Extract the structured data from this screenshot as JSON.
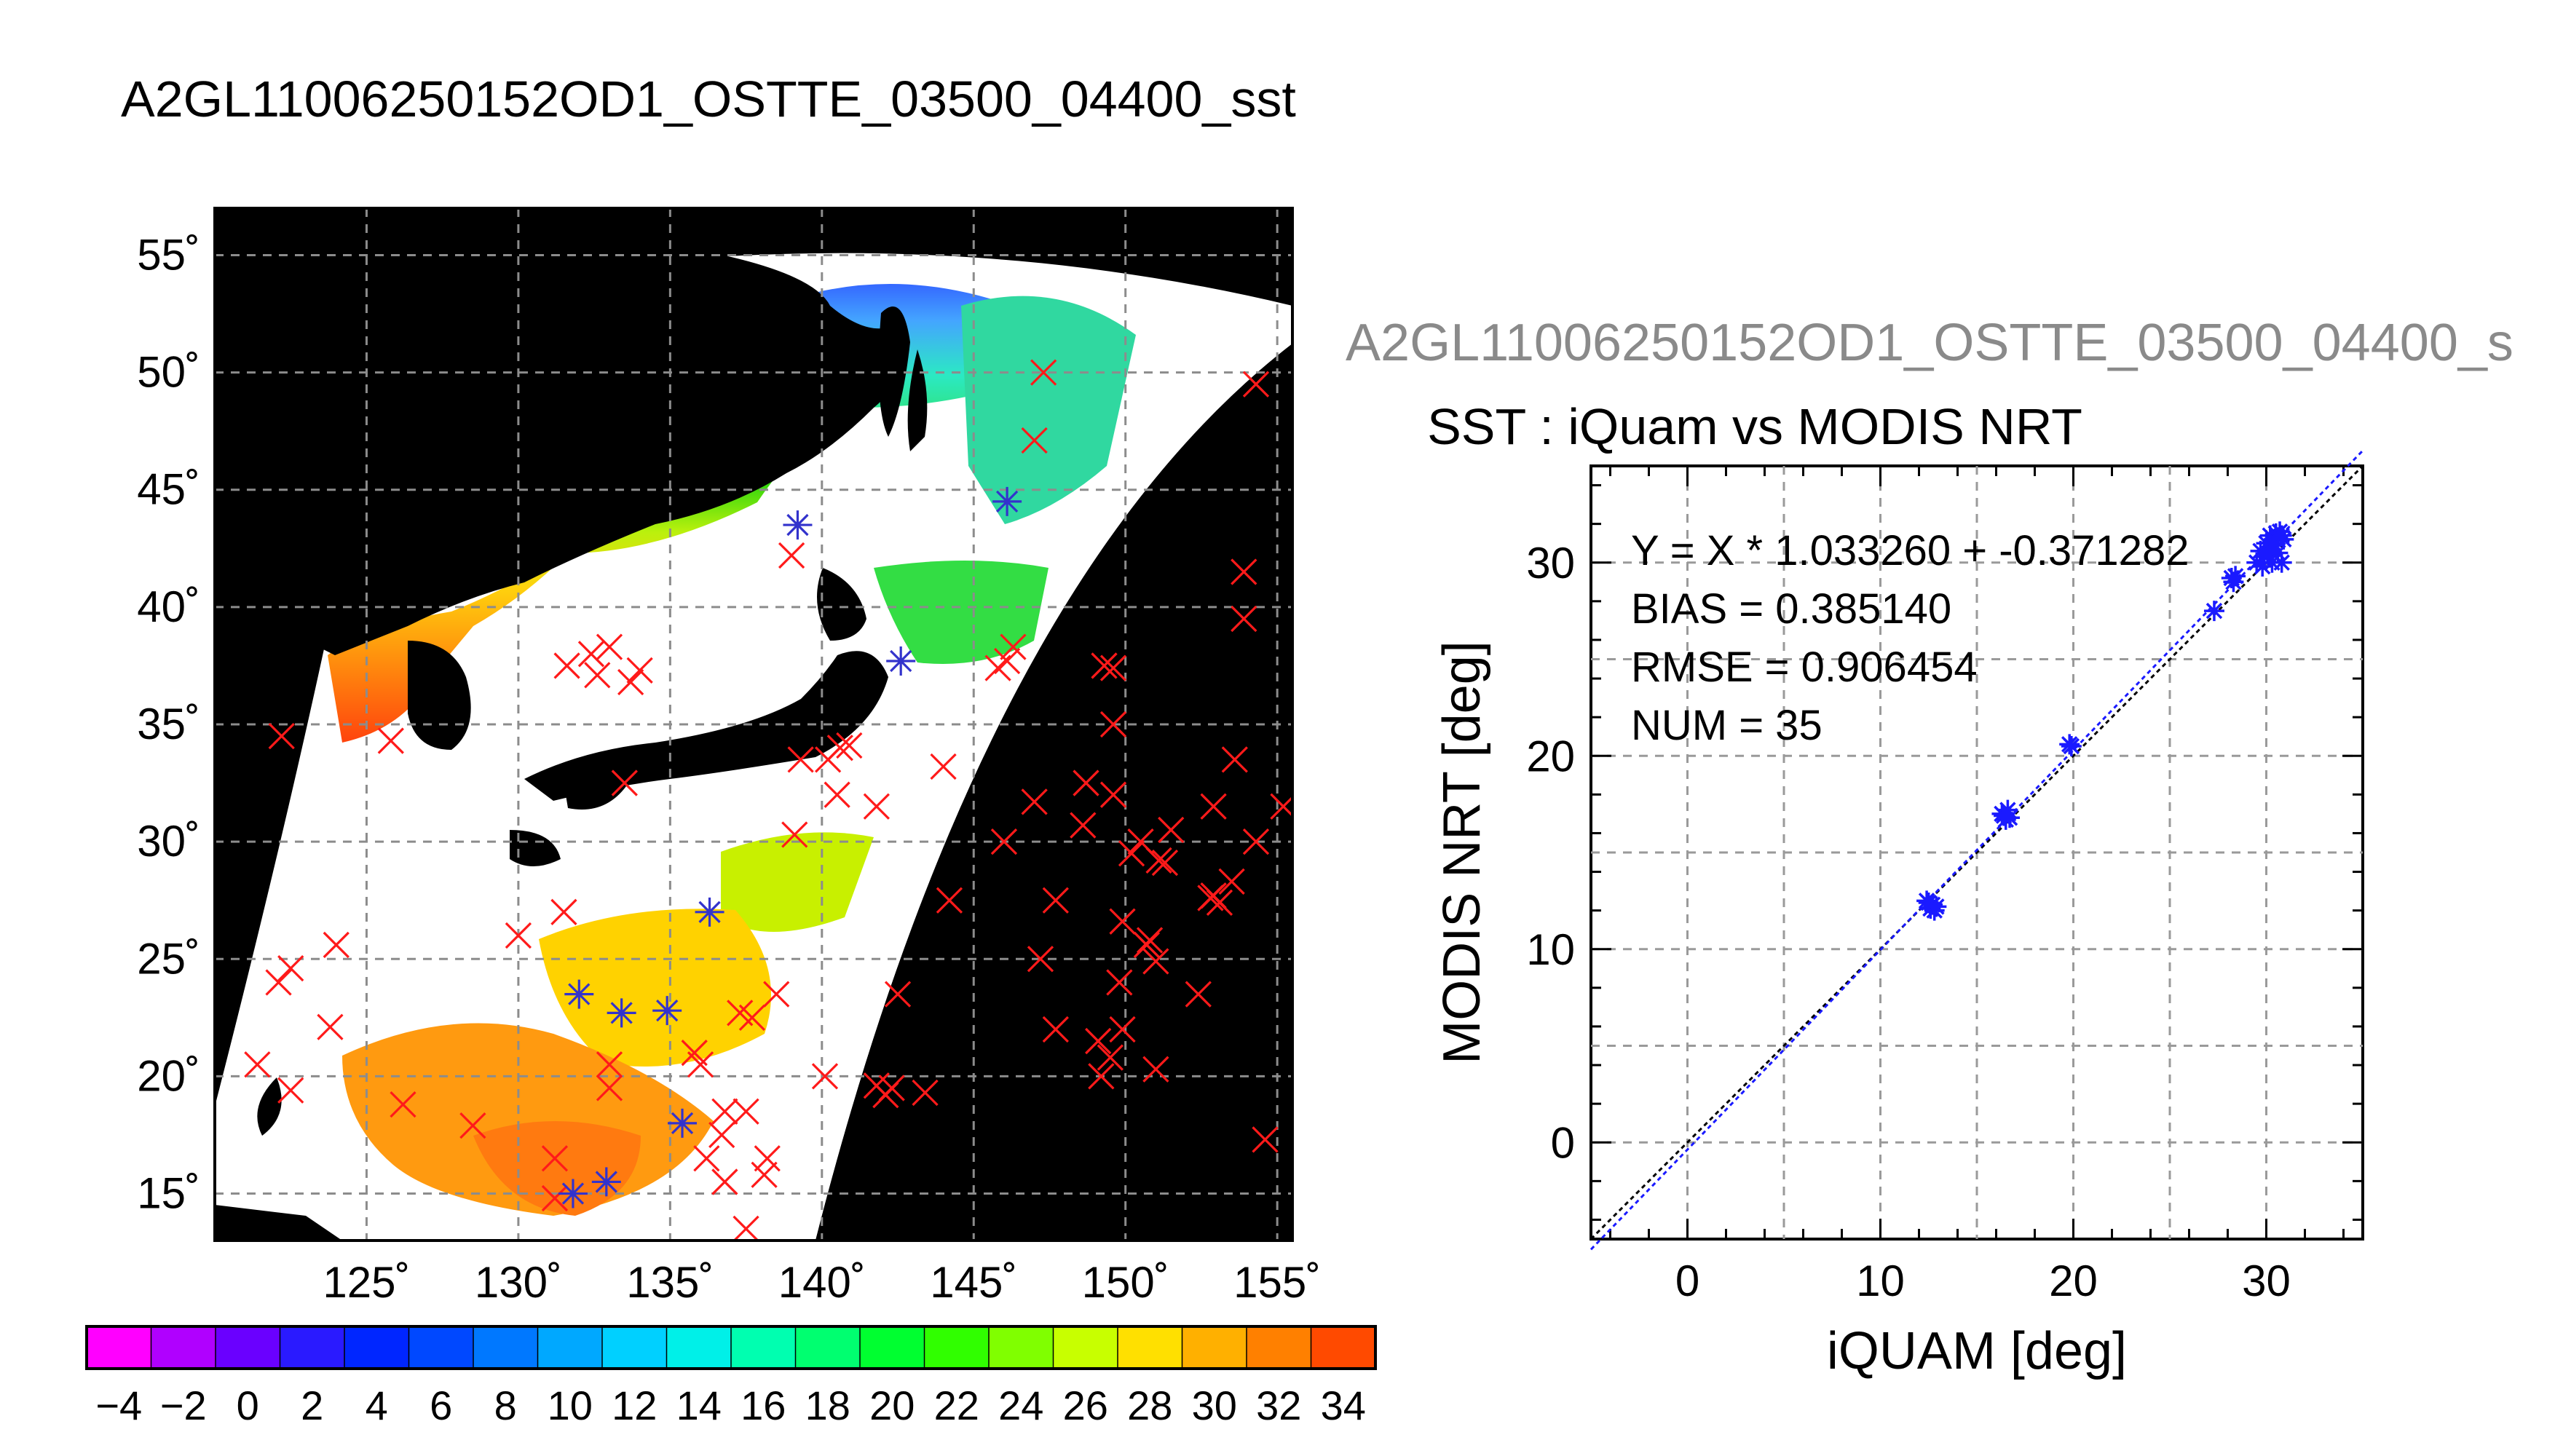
{
  "figure": {
    "title": "A2GL11006250152OD1_OSTTE_03500_04400_sst",
    "side_title": "A2GL11006250152OD1_OSTTE_03500_04400_s"
  },
  "chart_data": [
    {
      "type": "map",
      "x_ticks": [
        "125˚",
        "130˚",
        "135˚",
        "140˚",
        "145˚",
        "150˚",
        "155˚"
      ],
      "y_ticks": [
        "55˚",
        "50˚",
        "45˚",
        "40˚",
        "35˚",
        "30˚",
        "25˚",
        "20˚",
        "15˚"
      ],
      "lon_range": [
        120,
        155.5
      ],
      "lat_range": [
        13,
        57
      ],
      "grid": true,
      "rejected_points": [
        [
          122.2,
          34.5
        ],
        [
          121.4,
          20.5
        ],
        [
          122.1,
          24.0
        ],
        [
          122.5,
          24.6
        ],
        [
          122.5,
          19.4
        ],
        [
          123.8,
          22.1
        ],
        [
          124.0,
          25.6
        ],
        [
          125.8,
          34.3
        ],
        [
          126.2,
          18.8
        ],
        [
          128.5,
          17.9
        ],
        [
          130.0,
          26.0
        ],
        [
          131.5,
          27.0
        ],
        [
          131.2,
          16.5
        ],
        [
          131.2,
          14.8
        ],
        [
          133.0,
          19.5
        ],
        [
          133.0,
          20.5
        ],
        [
          131.6,
          37.5
        ],
        [
          132.4,
          38.0
        ],
        [
          132.6,
          37.1
        ],
        [
          133.0,
          38.3
        ],
        [
          133.7,
          36.8
        ],
        [
          134.0,
          37.3
        ],
        [
          133.5,
          32.5
        ],
        [
          135.8,
          21.0
        ],
        [
          136.0,
          20.5
        ],
        [
          136.8,
          18.5
        ],
        [
          136.7,
          17.5
        ],
        [
          136.2,
          16.5
        ],
        [
          136.8,
          15.5
        ],
        [
          137.5,
          18.5
        ],
        [
          138.1,
          15.8
        ],
        [
          138.2,
          16.5
        ],
        [
          137.5,
          13.5
        ],
        [
          137.3,
          22.7
        ],
        [
          137.7,
          22.5
        ],
        [
          138.5,
          23.5
        ],
        [
          139.0,
          42.2
        ],
        [
          139.3,
          33.5
        ],
        [
          140.2,
          33.5
        ],
        [
          140.5,
          32.0
        ],
        [
          140.6,
          34.0
        ],
        [
          140.9,
          34.1
        ],
        [
          141.8,
          31.5
        ],
        [
          142.5,
          23.5
        ],
        [
          141.8,
          19.6
        ],
        [
          142.3,
          19.5
        ],
        [
          142.1,
          19.2
        ],
        [
          143.4,
          19.3
        ],
        [
          144.0,
          33.2
        ],
        [
          144.2,
          27.5
        ],
        [
          145.8,
          37.4
        ],
        [
          146.1,
          37.7
        ],
        [
          146.3,
          38.3
        ],
        [
          146.0,
          30.0
        ],
        [
          147.0,
          31.7
        ],
        [
          147.7,
          27.5
        ],
        [
          147.2,
          25.0
        ],
        [
          147.7,
          22.0
        ],
        [
          148.6,
          30.7
        ],
        [
          148.7,
          32.5
        ],
        [
          149.3,
          37.5
        ],
        [
          149.6,
          37.4
        ],
        [
          149.6,
          35.0
        ],
        [
          149.6,
          32.0
        ],
        [
          149.1,
          21.5
        ],
        [
          149.5,
          20.8
        ],
        [
          149.2,
          20.0
        ],
        [
          149.9,
          22.0
        ],
        [
          149.8,
          24.0
        ],
        [
          149.9,
          26.6
        ],
        [
          150.2,
          29.5
        ],
        [
          150.5,
          30.0
        ],
        [
          150.7,
          25.6
        ],
        [
          150.8,
          25.8
        ],
        [
          151.0,
          24.9
        ],
        [
          151.0,
          20.3
        ],
        [
          151.1,
          29.2
        ],
        [
          151.3,
          29.1
        ],
        [
          151.5,
          30.5
        ],
        [
          152.4,
          23.5
        ],
        [
          152.8,
          27.6
        ],
        [
          152.9,
          27.7
        ],
        [
          153.1,
          27.4
        ],
        [
          152.9,
          31.5
        ],
        [
          153.5,
          28.3
        ],
        [
          153.6,
          33.5
        ],
        [
          153.9,
          39.5
        ],
        [
          153.9,
          41.5
        ],
        [
          154.3,
          30.0
        ],
        [
          155.2,
          31.5
        ],
        [
          154.3,
          49.5
        ],
        [
          154.6,
          17.3
        ],
        [
          147.3,
          50.0
        ],
        [
          147.0,
          47.1
        ],
        [
          139.1,
          30.3
        ],
        [
          140.1,
          20.0
        ]
      ],
      "matched_points": [
        [
          139.2,
          43.5
        ],
        [
          146.1,
          44.5
        ],
        [
          142.6,
          37.7
        ],
        [
          136.3,
          27.0
        ],
        [
          132.0,
          23.5
        ],
        [
          133.4,
          22.7
        ],
        [
          134.9,
          22.8
        ],
        [
          135.4,
          18.0
        ],
        [
          132.9,
          15.5
        ],
        [
          131.8,
          15.0
        ]
      ]
    },
    {
      "type": "scatter",
      "title": "SST : iQuam vs MODIS NRT",
      "xlabel": "iQUAM [deg]",
      "ylabel": "MODIS NRT [deg]",
      "xlim": [
        -5,
        35
      ],
      "ylim": [
        -5,
        35
      ],
      "x_ticks": [
        "0",
        "10",
        "20",
        "30"
      ],
      "y_ticks": [
        "0",
        "10",
        "20",
        "30"
      ],
      "grid": true,
      "annotations": [
        "Y = X * 1.033260 + -0.371282",
        "BIAS = 0.385140",
        "RMSE = 0.906454",
        "NUM = 35"
      ],
      "fit": {
        "slope": 1.03326,
        "intercept": -0.371282
      },
      "points": [
        [
          12.5,
          12.4
        ],
        [
          12.6,
          12.1
        ],
        [
          12.7,
          12.3
        ],
        [
          12.8,
          12.0
        ],
        [
          12.9,
          12.2
        ],
        [
          12.4,
          12.5
        ],
        [
          16.3,
          17.0
        ],
        [
          16.5,
          16.7
        ],
        [
          16.6,
          17.2
        ],
        [
          16.4,
          16.9
        ],
        [
          16.7,
          16.8
        ],
        [
          19.8,
          20.6
        ],
        [
          19.9,
          20.5
        ],
        [
          27.3,
          27.5
        ],
        [
          28.2,
          29.2
        ],
        [
          28.4,
          29.3
        ],
        [
          29.5,
          30.0
        ],
        [
          29.8,
          29.8
        ],
        [
          30.1,
          30.4
        ],
        [
          30.2,
          31.4
        ],
        [
          30.4,
          31.2
        ],
        [
          30.5,
          31.5
        ],
        [
          30.6,
          30.5
        ],
        [
          30.7,
          31.6
        ],
        [
          30.8,
          31.4
        ],
        [
          30.9,
          31.2
        ],
        [
          30.3,
          30.0
        ],
        [
          29.9,
          30.3
        ],
        [
          30.0,
          31.0
        ],
        [
          30.6,
          31.3
        ],
        [
          30.4,
          30.9
        ],
        [
          29.7,
          30.6
        ],
        [
          28.3,
          29.0
        ],
        [
          30.2,
          30.7
        ],
        [
          30.8,
          30.0
        ]
      ],
      "marker_color": "#1a1aff"
    },
    {
      "type": "colorbar",
      "range": [
        -5,
        35
      ],
      "tick_labels": [
        "−4",
        "−2",
        "0",
        "2",
        "4",
        "6",
        "8",
        "10",
        "12",
        "14",
        "16",
        "18",
        "20",
        "22",
        "24",
        "26",
        "28",
        "30",
        "32",
        "34"
      ],
      "tick_values": [
        -4,
        -2,
        0,
        2,
        4,
        6,
        8,
        10,
        12,
        14,
        16,
        18,
        20,
        22,
        24,
        26,
        28,
        30,
        32,
        34
      ]
    }
  ]
}
